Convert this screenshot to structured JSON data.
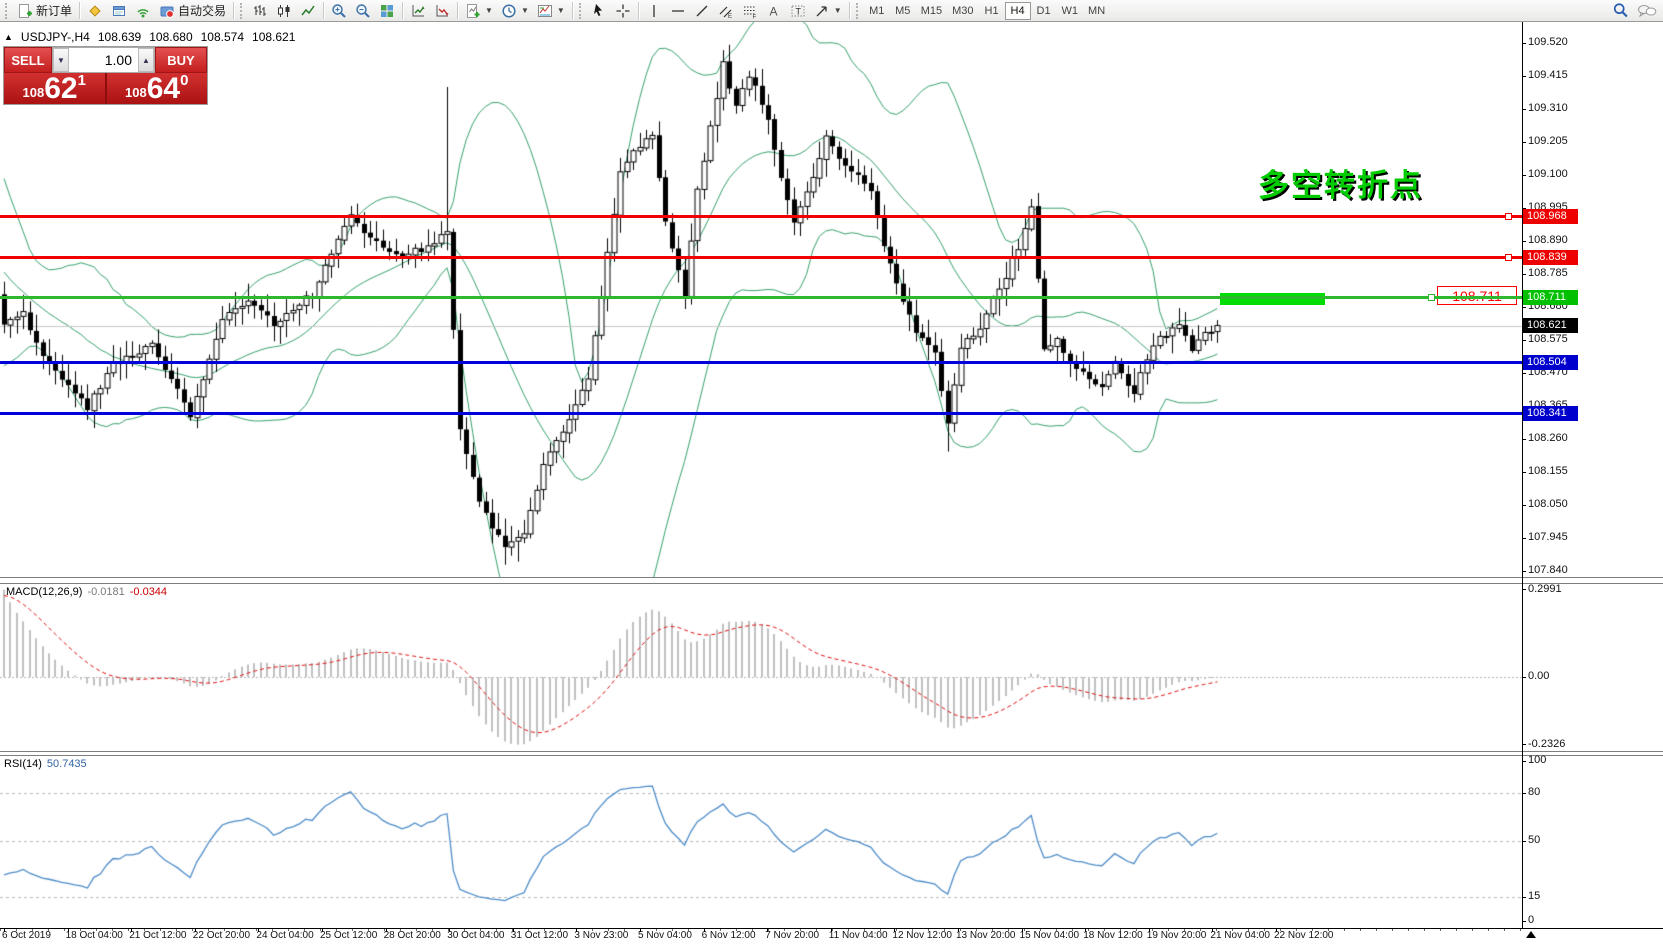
{
  "icons": {
    "symbol_marker": "▲",
    "spinner_down": "▼",
    "spinner_up": "▲",
    "caret_down": "▼"
  },
  "toolbar": {
    "new_order_label": "新订单",
    "autotrading_label": "自动交易",
    "timeframes": [
      "M1",
      "M5",
      "M15",
      "M30",
      "H1",
      "H4",
      "D1",
      "W1",
      "MN"
    ],
    "active_timeframe": "H4"
  },
  "symbol_bar": {
    "symbol": "USDJPY-,H4",
    "open": "108.639",
    "high": "108.680",
    "low": "108.574",
    "close": "108.621"
  },
  "trade_panel": {
    "sell_label": "SELL",
    "buy_label": "BUY",
    "volume": "1.00",
    "price_prefix": "108",
    "sell_big": "62",
    "sell_sup": "1",
    "buy_big": "64",
    "buy_sup": "0"
  },
  "annotation": {
    "text": "多空转折点",
    "color": "#00cc00"
  },
  "price_scale": {
    "ticks": [
      "109.520",
      "109.415",
      "109.310",
      "109.205",
      "109.100",
      "108.995",
      "108.890",
      "108.785",
      "108.680",
      "108.575",
      "108.470",
      "108.365",
      "108.260",
      "108.155",
      "108.050",
      "107.945",
      "107.840"
    ]
  },
  "levels": [
    {
      "price": 108.968,
      "label": "108.968",
      "line_color": "#f00000",
      "badge_bg": "#ee0000",
      "thickness": 3,
      "endpoint": 1505
    },
    {
      "price": 108.839,
      "label": "108.839",
      "line_color": "#f00000",
      "badge_bg": "#ee0000",
      "thickness": 3,
      "endpoint": 1505
    },
    {
      "price": 108.711,
      "label": "108.711",
      "line_color": "#2eb82e",
      "badge_bg": "#00c000",
      "thickness": 3,
      "endpoint": 1428
    },
    {
      "price": 108.504,
      "label": "108.504",
      "line_color": "#0000dd",
      "badge_bg": "#0000cc",
      "thickness": 3
    },
    {
      "price": 108.341,
      "label": "108.341",
      "line_color": "#0000dd",
      "badge_bg": "#0000cc",
      "thickness": 3
    }
  ],
  "current_price": {
    "value": "108.621",
    "badge_bg": "#000000"
  },
  "price_label_box": {
    "text": "108.711",
    "color": "#ff0000"
  },
  "time_axis": {
    "labels": [
      "6 Oct 2019",
      "18 Oct 04:00",
      "21 Oct 12:00",
      "22 Oct 20:00",
      "24 Oct 04:00",
      "25 Oct 12:00",
      "28 Oct 20:00",
      "30 Oct 04:00",
      "31 Oct 12:00",
      "3 Nov 23:00",
      "5 Nov 04:00",
      "6 Nov 12:00",
      "7 Nov 20:00",
      "11 Nov 04:00",
      "12 Nov 12:00",
      "13 Nov 20:00",
      "15 Nov 04:00",
      "18 Nov 12:00",
      "19 Nov 20:00",
      "21 Nov 04:00",
      "22 Nov 12:00"
    ]
  },
  "macd": {
    "title": "MACD(12,26,9)",
    "value_main": "-0.0181",
    "value_signal": "-0.0344",
    "axis_ticks": [
      "0.2991",
      "0.00",
      "-0.2326"
    ]
  },
  "rsi": {
    "title": "RSI(14)",
    "value": "50.7435",
    "axis_ticks": [
      "100",
      "80",
      "50",
      "15",
      "0"
    ]
  },
  "chart_data": {
    "type": "candlestick",
    "symbol": "USDJPY-",
    "timeframe": "H4",
    "visible_range": {
      "price_min": 107.84,
      "price_max": 109.57
    },
    "ohlc_current": {
      "open": 108.639,
      "high": 108.68,
      "low": 108.574,
      "close": 108.621
    },
    "bollinger": {
      "period": 20,
      "deviation": 2,
      "color": "#35a06a"
    },
    "macd": {
      "fast": 12,
      "slow": 26,
      "signal": 9,
      "current_main": -0.0181,
      "current_signal": -0.0344,
      "hist_color": "#c0c0c0",
      "signal_color": "#dd1111",
      "axis_max": 0.2991,
      "axis_min": -0.2326
    },
    "rsi": {
      "period": 14,
      "current": 50.7435,
      "levels": [
        80,
        50,
        15
      ],
      "line_color": "#4e8cc8"
    },
    "horizontal_levels": [
      108.968,
      108.839,
      108.711,
      108.504,
      108.341
    ],
    "n_candles": 190,
    "macd_seed": {
      "fast": 0.279,
      "slow": -0.021
    },
    "close_anchors": [
      [
        0,
        108.62
      ],
      [
        3,
        108.66
      ],
      [
        6,
        108.52
      ],
      [
        9,
        108.45
      ],
      [
        13,
        108.36
      ],
      [
        17,
        108.5
      ],
      [
        23,
        108.56
      ],
      [
        27,
        108.42
      ],
      [
        29,
        108.32
      ],
      [
        34,
        108.65
      ],
      [
        38,
        108.7
      ],
      [
        42,
        108.63
      ],
      [
        48,
        108.72
      ],
      [
        54,
        108.97
      ],
      [
        57,
        108.9
      ],
      [
        62,
        108.84
      ],
      [
        67,
        108.88
      ],
      [
        69,
        108.92
      ],
      [
        71,
        108.3
      ],
      [
        74,
        108.05
      ],
      [
        78,
        107.92
      ],
      [
        81,
        107.96
      ],
      [
        84,
        108.18
      ],
      [
        87,
        108.28
      ],
      [
        91,
        108.45
      ],
      [
        94,
        108.85
      ],
      [
        96,
        109.1
      ],
      [
        98,
        109.18
      ],
      [
        101,
        109.22
      ],
      [
        103,
        108.95
      ],
      [
        106,
        108.72
      ],
      [
        108,
        109.05
      ],
      [
        112,
        109.45
      ],
      [
        114,
        109.32
      ],
      [
        116,
        109.42
      ],
      [
        119,
        109.28
      ],
      [
        121,
        109.08
      ],
      [
        123,
        108.95
      ],
      [
        126,
        109.1
      ],
      [
        128,
        109.22
      ],
      [
        130,
        109.16
      ],
      [
        133,
        109.1
      ],
      [
        135,
        109.04
      ],
      [
        137,
        108.88
      ],
      [
        140,
        108.7
      ],
      [
        142,
        108.6
      ],
      [
        145,
        108.54
      ],
      [
        147,
        108.3
      ],
      [
        149,
        108.55
      ],
      [
        152,
        108.62
      ],
      [
        154,
        108.7
      ],
      [
        156,
        108.78
      ],
      [
        159,
        108.92
      ],
      [
        160,
        109.0
      ],
      [
        162,
        108.55
      ],
      [
        164,
        108.58
      ],
      [
        166,
        108.5
      ],
      [
        169,
        108.46
      ],
      [
        171,
        108.42
      ],
      [
        173,
        108.5
      ],
      [
        176,
        108.4
      ],
      [
        178,
        108.52
      ],
      [
        180,
        108.58
      ],
      [
        183,
        108.62
      ],
      [
        185,
        108.55
      ],
      [
        187,
        108.6
      ],
      [
        189,
        108.621
      ]
    ],
    "wick_overrides": [
      {
        "i": 69,
        "high": 109.38
      },
      {
        "i": 78,
        "low": 107.86
      },
      {
        "i": 80,
        "low": 107.87
      },
      {
        "i": 147,
        "low": 108.22
      }
    ]
  }
}
